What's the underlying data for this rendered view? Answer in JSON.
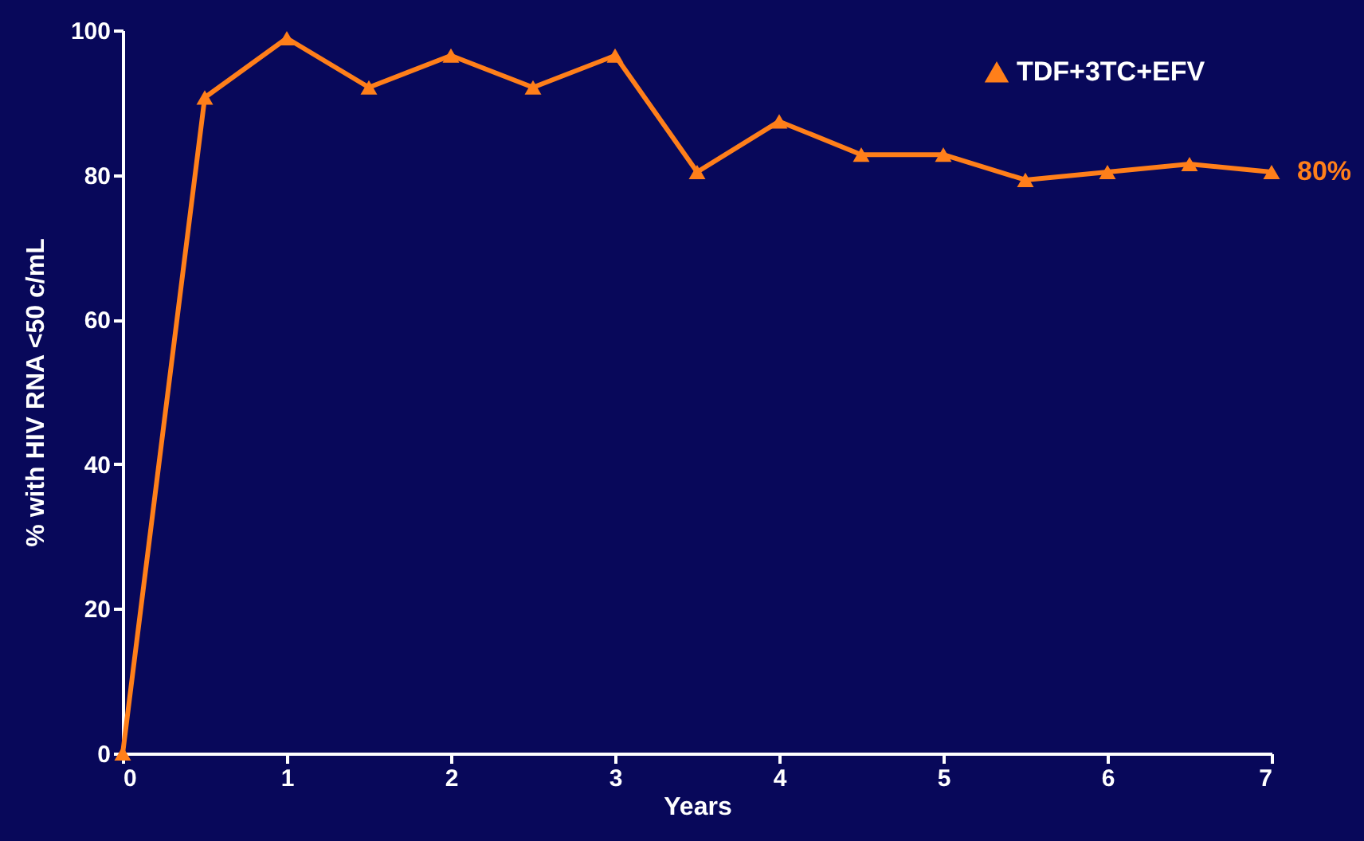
{
  "chart_data": {
    "type": "line",
    "xlabel": "Years",
    "ylabel": "% with HIV RNA <50 c/mL",
    "x": [
      0,
      0.5,
      1,
      1.5,
      2,
      2.5,
      3,
      3.5,
      4,
      4.5,
      5,
      5.5,
      6,
      6.5,
      7
    ],
    "series": [
      {
        "name": "TDF+3TC+EFV",
        "color": "#ff7f1a",
        "values": [
          0,
          90.7,
          98.9,
          92.1,
          96.5,
          92.1,
          96.5,
          80.4,
          87.4,
          82.8,
          82.8,
          79.3,
          80.4,
          81.5,
          80.4
        ]
      }
    ],
    "xlim": [
      0,
      7
    ],
    "xticks": [
      0,
      1,
      2,
      3,
      4,
      5,
      6,
      7
    ],
    "ylim": [
      0,
      100
    ],
    "yticks": [
      0,
      20,
      40,
      60,
      80,
      100
    ],
    "annotations": [
      {
        "text": "80%",
        "x": 7,
        "y": 80.4
      }
    ],
    "grid": false,
    "legend": "top right",
    "marker": "triangle",
    "line_style": "solid"
  }
}
